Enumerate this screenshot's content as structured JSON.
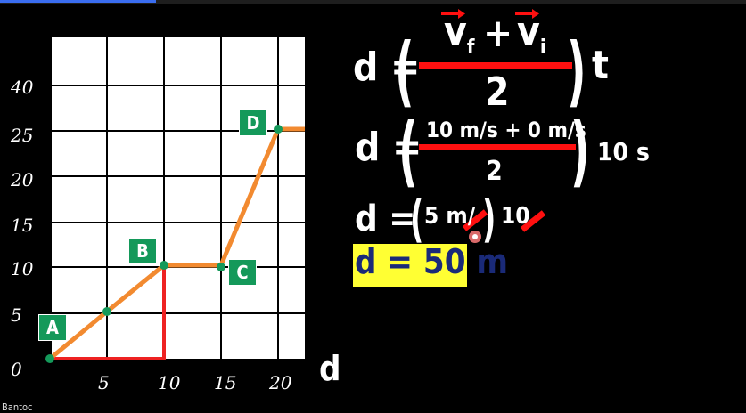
{
  "graph": {
    "y_ticks": [
      "40",
      "25",
      "20",
      "15",
      "10",
      "5",
      "0"
    ],
    "x_ticks": [
      "5",
      "10",
      "15",
      "20"
    ],
    "x_axis_label": "d",
    "point_labels": [
      "A",
      "B",
      "C",
      "D"
    ]
  },
  "equations": {
    "d_equals": "d =",
    "vf": "v",
    "vf_sub": "f",
    "plus": "+",
    "vi": "v",
    "vi_sub": "i",
    "denominator": "2",
    "t": "t",
    "numerator2": "10 m/s + 0 m/s",
    "denominator2": "2",
    "time2": "10 s",
    "line3_a": "5 m/",
    "line3_b": "10",
    "answer": "d = 50 m"
  },
  "footer_text": "Bantoc",
  "colors": {
    "background": "#000000",
    "line": "#f28a30",
    "highlight": "#ffff33",
    "accent_red": "#ff1010",
    "label_green": "#14995a"
  }
}
